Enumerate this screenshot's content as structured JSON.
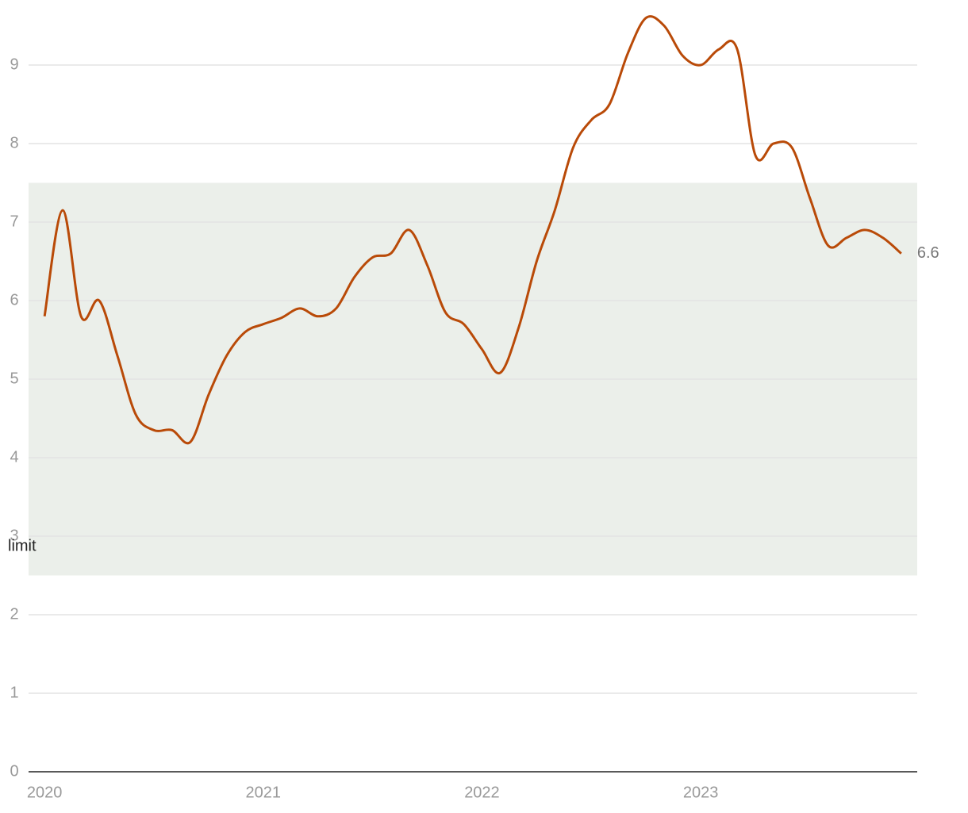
{
  "chart_data": {
    "type": "line",
    "x": [
      2020.0,
      2020.083,
      2020.167,
      2020.25,
      2020.333,
      2020.417,
      2020.5,
      2020.583,
      2020.667,
      2020.75,
      2020.833,
      2020.917,
      2021.0,
      2021.083,
      2021.167,
      2021.25,
      2021.333,
      2021.417,
      2021.5,
      2021.583,
      2021.667,
      2021.75,
      2021.833,
      2021.917,
      2022.0,
      2022.083,
      2022.167,
      2022.25,
      2022.333,
      2022.417,
      2022.5,
      2022.583,
      2022.667,
      2022.75,
      2022.833,
      2022.917,
      2023.0,
      2023.083,
      2023.167,
      2023.25,
      2023.333,
      2023.417,
      2023.5,
      2023.583,
      2023.667,
      2023.75,
      2023.833,
      2023.917
    ],
    "series": [
      {
        "color": "#b94a08",
        "values": [
          5.8,
          7.15,
          5.8,
          6.0,
          5.3,
          4.55,
          4.35,
          4.35,
          4.2,
          4.8,
          5.3,
          5.6,
          5.7,
          5.78,
          5.9,
          5.8,
          5.9,
          6.3,
          6.55,
          6.6,
          6.9,
          6.45,
          5.85,
          5.7,
          5.38,
          5.08,
          5.65,
          6.5,
          7.15,
          7.95,
          8.3,
          8.5,
          9.15,
          9.6,
          9.5,
          9.12,
          9.0,
          9.2,
          9.2,
          7.85,
          8.0,
          7.95,
          7.3,
          6.7,
          6.8,
          6.9,
          6.8,
          6.6
        ]
      }
    ],
    "band": [
      2.5,
      7.5
    ],
    "band_label": "limit",
    "band_color": "#ebefea",
    "xlim": [
      2019.927,
      2023.99
    ],
    "xticks": [
      2020,
      2021,
      2022,
      2023
    ],
    "ylim": [
      0,
      9.6
    ],
    "yticks": [
      0,
      1,
      2,
      3,
      4,
      5,
      6,
      7,
      8,
      9
    ],
    "grid": true
  }
}
